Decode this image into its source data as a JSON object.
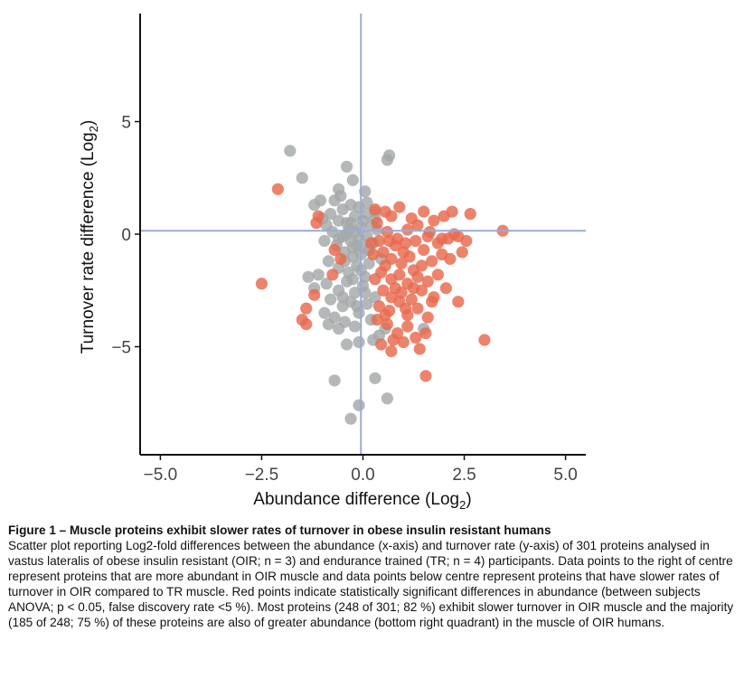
{
  "figure": {
    "caption_title": "Figure 1 – Muscle proteins exhibit slower rates of turnover in obese insulin resistant humans",
    "caption_text": "Scatter plot reporting Log2-fold differences between the abundance (x-axis) and turnover rate (y-axis) of 301 proteins analysed in vastus lateralis of obese insulin resistant (OIR; n = 3) and endurance trained (TR; n = 4) participants. Data points to the right of centre represent proteins that are more abundant in OIR muscle and data points below centre represent proteins that have slower rates of turnover in OIR compared to TR muscle. Red points indicate statistically significant differences in abundance (between subjects ANOVA; p < 0.05, false discovery rate <5 %). Most proteins (248 of 301; 82 %) exhibit slower turnover in OIR muscle and the majority (185 of 248; 75 %) of these proteins are also of greater abundance (bottom right quadrant) in the muscle of OIR humans."
  },
  "chart_data": {
    "type": "scatter",
    "xlabel_main": "Abundance difference (Log",
    "xlabel_sub": "2",
    "xlabel_end": ")",
    "ylabel_main": "Turnover rate difference (Log",
    "ylabel_sub": "2",
    "ylabel_end": ")",
    "xlim": [
      -5.5,
      5.5
    ],
    "ylim": [
      -9.8,
      9.8
    ],
    "x_ticks": [
      -5.0,
      -2.5,
      0.0,
      2.5,
      5.0
    ],
    "x_tick_labels": [
      "−5.0",
      "−2.5",
      "0.0",
      "2.5",
      "5.0"
    ],
    "y_ticks": [
      -5,
      0,
      5
    ],
    "y_tick_labels": [
      "−5",
      "0",
      "5"
    ],
    "reference_lines": {
      "x": -0.05,
      "y": 0.15
    },
    "grid": false,
    "colors": {
      "not_significant": "#a3a8a8",
      "significant": "#e8694d",
      "reference_line": "#9aaad4",
      "axis": "#111111"
    },
    "series": [
      {
        "key": "not_significant",
        "points": [
          [
            -1.8,
            3.7
          ],
          [
            -1.5,
            2.5
          ],
          [
            -0.4,
            3.0
          ],
          [
            0.6,
            3.3
          ],
          [
            0.65,
            3.5
          ],
          [
            -0.6,
            2.0
          ],
          [
            -0.25,
            2.4
          ],
          [
            0.05,
            1.9
          ],
          [
            -0.7,
            1.5
          ],
          [
            -0.5,
            1.1
          ],
          [
            -0.3,
            1.3
          ],
          [
            -0.1,
            1.2
          ],
          [
            0.1,
            1.4
          ],
          [
            0.3,
            1.0
          ],
          [
            -0.8,
            0.9
          ],
          [
            -1.05,
            1.5
          ],
          [
            -1.2,
            1.3
          ],
          [
            -0.9,
            0.4
          ],
          [
            -0.6,
            0.6
          ],
          [
            -0.4,
            0.5
          ],
          [
            -0.2,
            0.8
          ],
          [
            0.0,
            0.6
          ],
          [
            0.2,
            0.4
          ],
          [
            -0.75,
            0.1
          ],
          [
            -0.5,
            -0.1
          ],
          [
            -0.3,
            -0.3
          ],
          [
            -0.1,
            -0.2
          ],
          [
            0.1,
            -0.1
          ],
          [
            0.25,
            -0.4
          ],
          [
            -0.65,
            -0.5
          ],
          [
            -0.45,
            -0.8
          ],
          [
            -0.25,
            -1.0
          ],
          [
            -0.05,
            -0.9
          ],
          [
            0.15,
            -0.7
          ],
          [
            -0.85,
            -1.2
          ],
          [
            -0.6,
            -1.5
          ],
          [
            -0.35,
            -1.7
          ],
          [
            -0.15,
            -1.4
          ],
          [
            0.05,
            -1.9
          ],
          [
            -1.1,
            -1.8
          ],
          [
            -0.9,
            -2.2
          ],
          [
            -0.6,
            -2.5
          ],
          [
            -0.4,
            -2.1
          ],
          [
            -0.2,
            -2.6
          ],
          [
            0.0,
            -2.3
          ],
          [
            -0.8,
            -2.9
          ],
          [
            -0.5,
            -3.2
          ],
          [
            -0.3,
            -3.0
          ],
          [
            -0.1,
            -3.5
          ],
          [
            0.1,
            -3.1
          ],
          [
            -0.7,
            -3.7
          ],
          [
            -0.45,
            -3.9
          ],
          [
            -0.2,
            -4.1
          ],
          [
            0.2,
            -3.8
          ],
          [
            0.4,
            -4.5
          ],
          [
            0.55,
            -4.2
          ],
          [
            1.5,
            -4.2
          ],
          [
            -0.4,
            -4.9
          ],
          [
            -0.1,
            -4.8
          ],
          [
            -0.7,
            -6.5
          ],
          [
            0.3,
            -6.4
          ],
          [
            0.6,
            -7.3
          ],
          [
            -0.1,
            -7.6
          ],
          [
            -0.3,
            -8.2
          ],
          [
            -0.95,
            -0.3
          ],
          [
            0.35,
            0.2
          ],
          [
            -0.2,
            0.1
          ],
          [
            0.45,
            -1.1
          ],
          [
            -1.0,
            0.7
          ],
          [
            -0.55,
            1.7
          ],
          [
            -1.35,
            -1.9
          ],
          [
            -1.2,
            -2.4
          ],
          [
            -0.95,
            -3.5
          ],
          [
            0.3,
            -2.8
          ],
          [
            -0.05,
            0.3
          ],
          [
            -0.15,
            -0.5
          ],
          [
            -0.3,
            0.5
          ],
          [
            0.0,
            -0.6
          ],
          [
            0.15,
            -1.3
          ],
          [
            -0.45,
            -1.2
          ],
          [
            -0.6,
            -0.2
          ],
          [
            -0.35,
            0.2
          ],
          [
            0.3,
            0.7
          ],
          [
            0.1,
            0.9
          ],
          [
            -0.05,
            -1.6
          ],
          [
            -0.25,
            -2.0
          ],
          [
            -0.5,
            -2.8
          ],
          [
            0.05,
            -2.6
          ],
          [
            -0.15,
            -3.2
          ],
          [
            -0.6,
            -4.2
          ],
          [
            0.25,
            -4.7
          ],
          [
            -0.85,
            -4.0
          ],
          [
            -0.4,
            0.0
          ],
          [
            -0.25,
            -0.6
          ]
        ]
      },
      {
        "key": "significant",
        "points": [
          [
            -2.1,
            2.0
          ],
          [
            -2.5,
            -2.2
          ],
          [
            -1.5,
            -3.8
          ],
          [
            -1.4,
            -3.3
          ],
          [
            -1.4,
            -4.0
          ],
          [
            -1.2,
            -2.7
          ],
          [
            -1.1,
            0.8
          ],
          [
            -1.15,
            0.5
          ],
          [
            -0.7,
            -0.7
          ],
          [
            -0.55,
            -1.1
          ],
          [
            0.3,
            1.1
          ],
          [
            0.55,
            1.0
          ],
          [
            0.7,
            0.8
          ],
          [
            0.9,
            1.2
          ],
          [
            1.2,
            0.7
          ],
          [
            1.5,
            1.0
          ],
          [
            1.75,
            0.6
          ],
          [
            2.0,
            0.8
          ],
          [
            2.2,
            1.0
          ],
          [
            2.65,
            0.9
          ],
          [
            1.1,
            0.2
          ],
          [
            1.35,
            0.4
          ],
          [
            1.65,
            0.1
          ],
          [
            0.4,
            -0.3
          ],
          [
            0.6,
            0.1
          ],
          [
            0.85,
            -0.2
          ],
          [
            1.05,
            -0.4
          ],
          [
            1.3,
            -0.3
          ],
          [
            1.6,
            -0.1
          ],
          [
            1.85,
            -0.4
          ],
          [
            2.1,
            -0.2
          ],
          [
            2.35,
            -0.1
          ],
          [
            2.55,
            -0.3
          ],
          [
            3.45,
            0.15
          ],
          [
            0.5,
            -0.8
          ],
          [
            0.7,
            -1.1
          ],
          [
            0.95,
            -1.3
          ],
          [
            1.15,
            -1.0
          ],
          [
            1.45,
            -1.4
          ],
          [
            1.7,
            -1.2
          ],
          [
            1.95,
            -0.9
          ],
          [
            2.15,
            -1.1
          ],
          [
            2.45,
            -0.8
          ],
          [
            0.45,
            -1.7
          ],
          [
            0.7,
            -2.0
          ],
          [
            0.9,
            -1.8
          ],
          [
            1.1,
            -2.2
          ],
          [
            1.35,
            -1.9
          ],
          [
            1.6,
            -2.1
          ],
          [
            1.85,
            -1.8
          ],
          [
            2.05,
            -2.4
          ],
          [
            0.5,
            -2.5
          ],
          [
            0.7,
            -2.8
          ],
          [
            0.95,
            -2.6
          ],
          [
            1.2,
            -2.9
          ],
          [
            1.45,
            -2.5
          ],
          [
            1.75,
            -2.8
          ],
          [
            0.4,
            -3.2
          ],
          [
            0.65,
            -3.4
          ],
          [
            0.9,
            -3.0
          ],
          [
            1.1,
            -3.6
          ],
          [
            1.35,
            -3.3
          ],
          [
            0.35,
            -3.8
          ],
          [
            0.6,
            -4.0
          ],
          [
            0.85,
            -4.4
          ],
          [
            1.1,
            -4.1
          ],
          [
            1.3,
            -4.6
          ],
          [
            1.6,
            -3.7
          ],
          [
            0.45,
            -4.9
          ],
          [
            0.7,
            -5.2
          ],
          [
            1.4,
            -5.1
          ],
          [
            1.55,
            -6.3
          ],
          [
            3.0,
            -4.7
          ],
          [
            2.35,
            -3.0
          ],
          [
            0.3,
            -2.0
          ],
          [
            0.2,
            -0.4
          ],
          [
            0.35,
            0.5
          ],
          [
            0.8,
            -0.5
          ],
          [
            1.25,
            -1.6
          ],
          [
            1.5,
            -0.7
          ],
          [
            0.55,
            -1.4
          ],
          [
            0.8,
            -2.4
          ],
          [
            1.05,
            -3.3
          ],
          [
            1.25,
            -2.4
          ],
          [
            1.7,
            -3.0
          ],
          [
            0.55,
            -3.6
          ],
          [
            0.75,
            -4.7
          ],
          [
            1.0,
            -4.8
          ],
          [
            1.55,
            -4.4
          ],
          [
            -0.75,
            -1.8
          ],
          [
            2.25,
            0.0
          ],
          [
            0.25,
            -0.9
          ],
          [
            0.65,
            -0.3
          ],
          [
            1.95,
            -0.2
          ],
          [
            1.0,
            -0.8
          ]
        ]
      }
    ]
  }
}
